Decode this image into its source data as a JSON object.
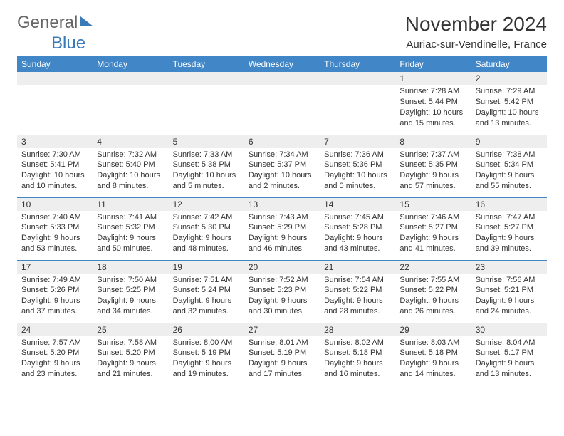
{
  "logo": {
    "text1": "General",
    "text2": "Blue"
  },
  "title": "November 2024",
  "location": "Auriac-sur-Vendinelle, France",
  "style": {
    "header_bg": "#4186c6",
    "header_text": "#ffffff",
    "daynum_bg": "#eeeeee",
    "row_border": "#4186c6",
    "body_text": "#333333",
    "page_bg": "#ffffff",
    "font_family": "Arial, Helvetica, sans-serif",
    "title_fontsize_pt": 21,
    "location_fontsize_pt": 11,
    "header_fontsize_pt": 9,
    "cell_fontsize_pt": 8
  },
  "columns": [
    "Sunday",
    "Monday",
    "Tuesday",
    "Wednesday",
    "Thursday",
    "Friday",
    "Saturday"
  ],
  "weeks": [
    [
      null,
      null,
      null,
      null,
      null,
      {
        "n": "1",
        "sr": "7:28 AM",
        "ss": "5:44 PM",
        "dl": "10 hours and 15 minutes."
      },
      {
        "n": "2",
        "sr": "7:29 AM",
        "ss": "5:42 PM",
        "dl": "10 hours and 13 minutes."
      }
    ],
    [
      {
        "n": "3",
        "sr": "7:30 AM",
        "ss": "5:41 PM",
        "dl": "10 hours and 10 minutes."
      },
      {
        "n": "4",
        "sr": "7:32 AM",
        "ss": "5:40 PM",
        "dl": "10 hours and 8 minutes."
      },
      {
        "n": "5",
        "sr": "7:33 AM",
        "ss": "5:38 PM",
        "dl": "10 hours and 5 minutes."
      },
      {
        "n": "6",
        "sr": "7:34 AM",
        "ss": "5:37 PM",
        "dl": "10 hours and 2 minutes."
      },
      {
        "n": "7",
        "sr": "7:36 AM",
        "ss": "5:36 PM",
        "dl": "10 hours and 0 minutes."
      },
      {
        "n": "8",
        "sr": "7:37 AM",
        "ss": "5:35 PM",
        "dl": "9 hours and 57 minutes."
      },
      {
        "n": "9",
        "sr": "7:38 AM",
        "ss": "5:34 PM",
        "dl": "9 hours and 55 minutes."
      }
    ],
    [
      {
        "n": "10",
        "sr": "7:40 AM",
        "ss": "5:33 PM",
        "dl": "9 hours and 53 minutes."
      },
      {
        "n": "11",
        "sr": "7:41 AM",
        "ss": "5:32 PM",
        "dl": "9 hours and 50 minutes."
      },
      {
        "n": "12",
        "sr": "7:42 AM",
        "ss": "5:30 PM",
        "dl": "9 hours and 48 minutes."
      },
      {
        "n": "13",
        "sr": "7:43 AM",
        "ss": "5:29 PM",
        "dl": "9 hours and 46 minutes."
      },
      {
        "n": "14",
        "sr": "7:45 AM",
        "ss": "5:28 PM",
        "dl": "9 hours and 43 minutes."
      },
      {
        "n": "15",
        "sr": "7:46 AM",
        "ss": "5:27 PM",
        "dl": "9 hours and 41 minutes."
      },
      {
        "n": "16",
        "sr": "7:47 AM",
        "ss": "5:27 PM",
        "dl": "9 hours and 39 minutes."
      }
    ],
    [
      {
        "n": "17",
        "sr": "7:49 AM",
        "ss": "5:26 PM",
        "dl": "9 hours and 37 minutes."
      },
      {
        "n": "18",
        "sr": "7:50 AM",
        "ss": "5:25 PM",
        "dl": "9 hours and 34 minutes."
      },
      {
        "n": "19",
        "sr": "7:51 AM",
        "ss": "5:24 PM",
        "dl": "9 hours and 32 minutes."
      },
      {
        "n": "20",
        "sr": "7:52 AM",
        "ss": "5:23 PM",
        "dl": "9 hours and 30 minutes."
      },
      {
        "n": "21",
        "sr": "7:54 AM",
        "ss": "5:22 PM",
        "dl": "9 hours and 28 minutes."
      },
      {
        "n": "22",
        "sr": "7:55 AM",
        "ss": "5:22 PM",
        "dl": "9 hours and 26 minutes."
      },
      {
        "n": "23",
        "sr": "7:56 AM",
        "ss": "5:21 PM",
        "dl": "9 hours and 24 minutes."
      }
    ],
    [
      {
        "n": "24",
        "sr": "7:57 AM",
        "ss": "5:20 PM",
        "dl": "9 hours and 23 minutes."
      },
      {
        "n": "25",
        "sr": "7:58 AM",
        "ss": "5:20 PM",
        "dl": "9 hours and 21 minutes."
      },
      {
        "n": "26",
        "sr": "8:00 AM",
        "ss": "5:19 PM",
        "dl": "9 hours and 19 minutes."
      },
      {
        "n": "27",
        "sr": "8:01 AM",
        "ss": "5:19 PM",
        "dl": "9 hours and 17 minutes."
      },
      {
        "n": "28",
        "sr": "8:02 AM",
        "ss": "5:18 PM",
        "dl": "9 hours and 16 minutes."
      },
      {
        "n": "29",
        "sr": "8:03 AM",
        "ss": "5:18 PM",
        "dl": "9 hours and 14 minutes."
      },
      {
        "n": "30",
        "sr": "8:04 AM",
        "ss": "5:17 PM",
        "dl": "9 hours and 13 minutes."
      }
    ]
  ],
  "labels": {
    "sunrise_prefix": "Sunrise: ",
    "sunset_prefix": "Sunset: ",
    "daylight_prefix": "Daylight: "
  }
}
